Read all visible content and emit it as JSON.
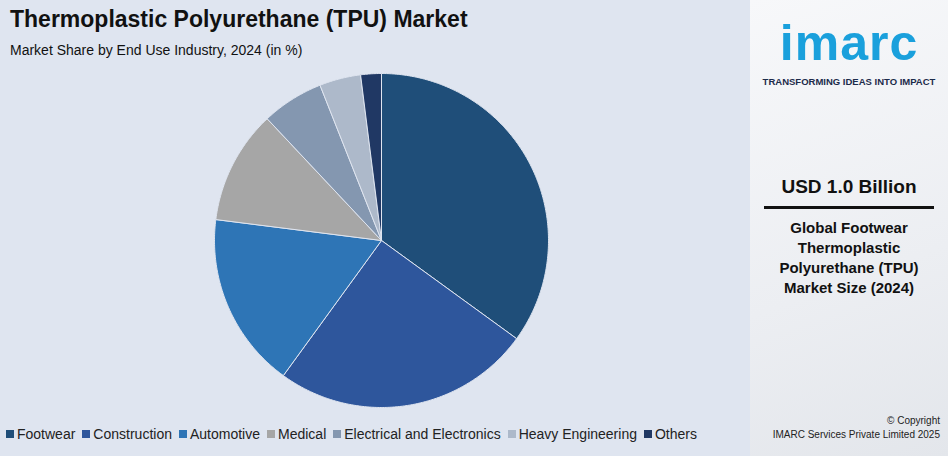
{
  "chart_data": {
    "type": "pie",
    "title": "Thermoplastic Polyurethane (TPU) Market",
    "subtitle": "Market Share by End Use Industry, 2024 (in %)",
    "categories": [
      "Footwear",
      "Construction",
      "Automotive",
      "Medical",
      "Electrical and Electronics",
      "Heavy Engineering",
      "Others"
    ],
    "values": [
      35,
      25,
      17,
      11,
      6,
      4,
      2
    ],
    "colors": [
      "#1f4e79",
      "#2e569c",
      "#2e75b6",
      "#a6a6a6",
      "#8497b0",
      "#adb9ca",
      "#203864"
    ],
    "legend": "bottom"
  },
  "sidebar": {
    "logo": "imarc",
    "tagline": "TRANSFORMING IDEAS INTO IMPACT",
    "headline": "USD 1.0 Billion",
    "description": "Global Footwear Thermoplastic Polyurethane (TPU) Market Size (2024)",
    "copyright": [
      "© Copyright",
      "IMARC Services Private Limited 2025"
    ]
  }
}
